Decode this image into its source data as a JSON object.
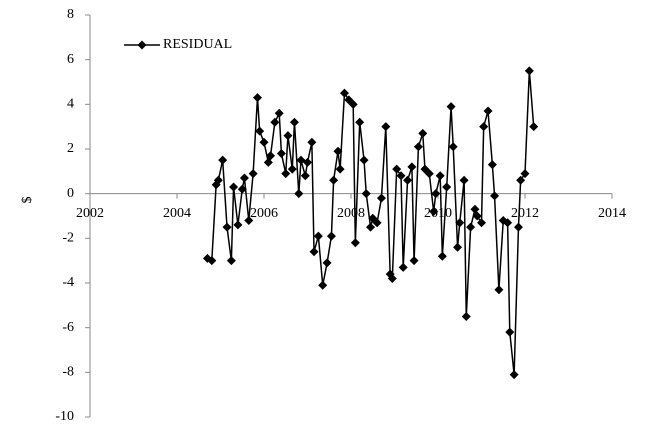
{
  "chart_data": {
    "type": "line",
    "y_label": "$",
    "x": [
      2004.7,
      2004.8,
      2004.9,
      2004.95,
      2005.05,
      2005.15,
      2005.25,
      2005.3,
      2005.4,
      2005.5,
      2005.55,
      2005.65,
      2005.75,
      2005.85,
      2005.9,
      2006.0,
      2006.1,
      2006.15,
      2006.25,
      2006.35,
      2006.4,
      2006.5,
      2006.55,
      2006.65,
      2006.7,
      2006.8,
      2006.85,
      2006.95,
      2007.0,
      2007.1,
      2007.15,
      2007.25,
      2007.35,
      2007.45,
      2007.55,
      2007.6,
      2007.7,
      2007.75,
      2007.85,
      2007.95,
      2008.05,
      2008.1,
      2008.2,
      2008.3,
      2008.35,
      2008.45,
      2008.5,
      2008.6,
      2008.7,
      2008.8,
      2008.9,
      2008.95,
      2009.05,
      2009.15,
      2009.2,
      2009.3,
      2009.4,
      2009.45,
      2009.55,
      2009.65,
      2009.7,
      2009.8,
      2009.9,
      2009.95,
      2010.05,
      2010.1,
      2010.2,
      2010.3,
      2010.35,
      2010.45,
      2010.5,
      2010.6,
      2010.65,
      2010.75,
      2010.85,
      2010.9,
      2011.0,
      2011.05,
      2011.15,
      2011.25,
      2011.3,
      2011.4,
      2011.5,
      2011.6,
      2011.65,
      2011.75,
      2011.85,
      2011.9,
      2012.0,
      2012.1,
      2012.2
    ],
    "series": [
      {
        "name": "RESIDUAL",
        "color": "#000000",
        "values": [
          -2.9,
          -3.0,
          0.4,
          0.6,
          1.5,
          -1.5,
          -3.0,
          0.3,
          -1.4,
          0.2,
          0.7,
          -1.2,
          0.9,
          4.3,
          2.8,
          2.3,
          1.4,
          1.7,
          3.2,
          3.6,
          1.8,
          0.9,
          2.6,
          1.1,
          3.2,
          0.0,
          1.5,
          0.8,
          1.4,
          2.3,
          -2.6,
          -1.9,
          -4.1,
          -3.1,
          -1.9,
          0.6,
          1.9,
          1.1,
          4.5,
          4.2,
          4.0,
          -2.2,
          3.2,
          1.5,
          0.0,
          -1.5,
          -1.1,
          -1.3,
          -0.2,
          3.0,
          -3.6,
          -3.8,
          1.1,
          0.8,
          -3.3,
          0.6,
          1.2,
          -3.0,
          2.1,
          2.7,
          1.1,
          0.9,
          -0.8,
          0.0,
          0.8,
          -2.8,
          0.3,
          3.9,
          2.1,
          -2.4,
          -1.3,
          0.6,
          -5.5,
          -1.5,
          -0.7,
          -1.0,
          -1.3,
          3.0,
          3.7,
          1.3,
          -0.1,
          -4.3,
          -1.2,
          -1.3,
          -6.2,
          -8.1,
          -1.5,
          0.6,
          0.9,
          5.5,
          3.0
        ]
      }
    ],
    "xlim": [
      2002,
      2014
    ],
    "xticks": [
      2002,
      2004,
      2006,
      2008,
      2010,
      2012,
      2014
    ],
    "ylim": [
      -10,
      8
    ],
    "yticks": [
      -10,
      -8,
      -6,
      -4,
      -2,
      0,
      2,
      4,
      6,
      8
    ],
    "grid": false,
    "legend": "upper left"
  }
}
